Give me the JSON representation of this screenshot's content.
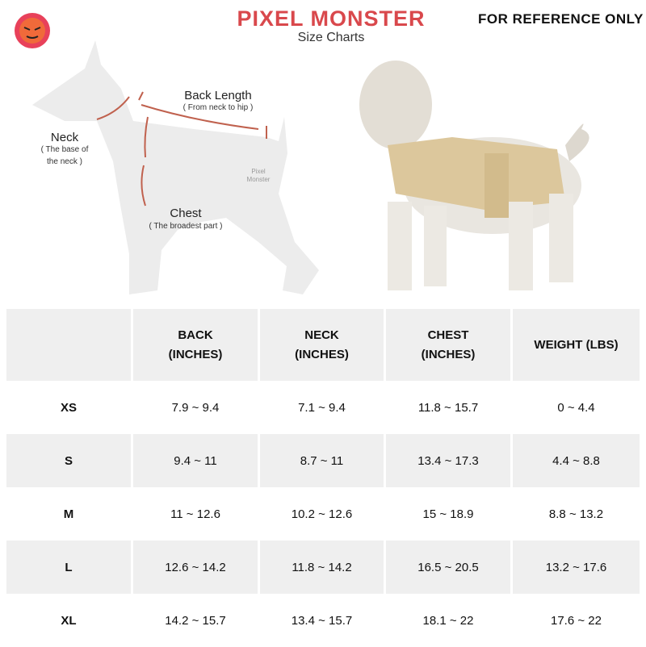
{
  "header": {
    "title": "PIXEL MONSTER",
    "subtitle": "Size Charts",
    "notice": "FOR REFERENCE ONLY"
  },
  "diagram": {
    "back_label": "Back Length",
    "back_note": "( From neck to hip )",
    "neck_label": "Neck",
    "neck_note": [
      "( The base of",
      "the neck )"
    ],
    "chest_label": "Chest",
    "chest_note": "( The broadest part )",
    "watermark": [
      "Pixel",
      "Monster"
    ]
  },
  "table": {
    "header": [
      [
        "BACK",
        "(INCHES)"
      ],
      [
        "NECK",
        "(INCHES)"
      ],
      [
        "CHEST",
        "(INCHES)"
      ],
      [
        "WEIGHT (LBS)"
      ]
    ],
    "rows": [
      [
        "XS",
        "7.9 ~ 9.4",
        "7.1 ~ 9.4",
        "11.8 ~ 15.7",
        "0 ~ 4.4"
      ],
      [
        "S",
        "9.4 ~ 11",
        "8.7 ~ 11",
        "13.4 ~ 17.3",
        "4.4 ~ 8.8"
      ],
      [
        "M",
        "11 ~ 12.6",
        "10.2 ~ 12.6",
        "15 ~ 18.9",
        "8.8 ~ 13.2"
      ],
      [
        "L",
        "12.6 ~ 14.2",
        "11.8 ~ 14.2",
        "16.5 ~ 20.5",
        "13.2 ~ 17.6"
      ],
      [
        "XL",
        "14.2 ~ 15.7",
        "13.4 ~ 15.7",
        "18.1 ~ 22",
        "17.6 ~ 22"
      ]
    ]
  }
}
